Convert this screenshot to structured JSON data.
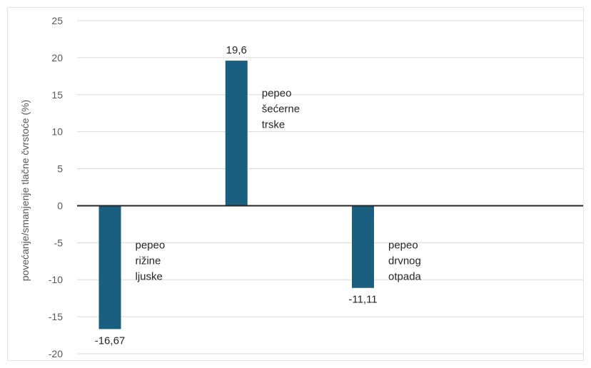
{
  "chart_data": {
    "type": "bar",
    "title": "",
    "xlabel": "",
    "ylabel": "povećanje/smanjenje tlačne čvrstoće (%)",
    "ylim": [
      -20,
      25
    ],
    "yticks": [
      25,
      20,
      15,
      10,
      5,
      0,
      -5,
      -10,
      -15,
      -20
    ],
    "grid": true,
    "legend": "none",
    "bar_color": "#1a5f80",
    "categories": [
      [
        "pepeo",
        "rižine",
        "ljuske"
      ],
      [
        "pepeo",
        "šećerne",
        "trske"
      ],
      [
        "pepeo",
        "drvnog",
        "otpada"
      ]
    ],
    "values": [
      -16.67,
      19.6,
      -11.11
    ],
    "data_labels": [
      "-16,67",
      "19,6",
      "-11,11"
    ]
  }
}
